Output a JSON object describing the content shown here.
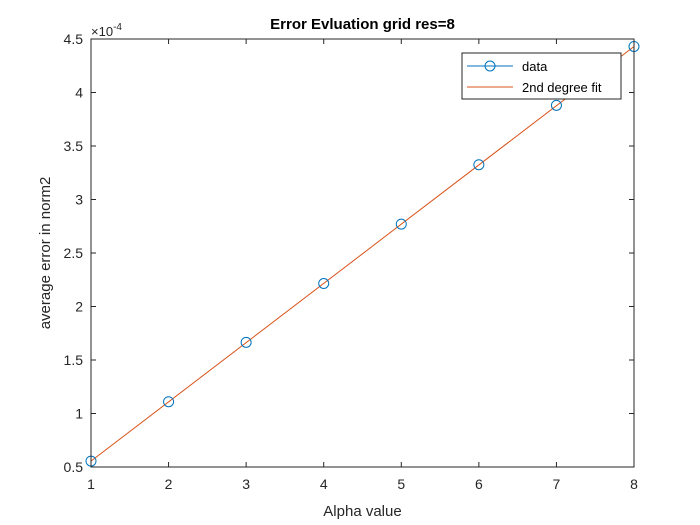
{
  "chart_data": {
    "type": "line",
    "title": "Error Evluation grid res=8",
    "xlabel": "Alpha value",
    "ylabel": "average error in norm2",
    "y_exponent_label": "×10",
    "y_exponent_power": "-4",
    "xlim": [
      1,
      8
    ],
    "ylim": [
      0.5,
      4.5
    ],
    "xticks": [
      "1",
      "2",
      "3",
      "4",
      "5",
      "6",
      "7",
      "8"
    ],
    "yticks": [
      "0.5",
      "1",
      "1.5",
      "2",
      "2.5",
      "3",
      "3.5",
      "4",
      "4.5"
    ],
    "grid": false,
    "legend_position": "top-right",
    "series": [
      {
        "name": "data",
        "style": "markers-circle",
        "color": "#0072BD",
        "x": [
          1,
          2,
          3,
          4,
          5,
          6,
          7,
          8
        ],
        "y": [
          0.555,
          1.11,
          1.665,
          2.215,
          2.77,
          3.325,
          3.88,
          4.43
        ]
      },
      {
        "name": "2nd degree fit",
        "style": "line",
        "color": "#D95319",
        "x": [
          1,
          8
        ],
        "y": [
          0.555,
          4.43
        ]
      }
    ]
  }
}
